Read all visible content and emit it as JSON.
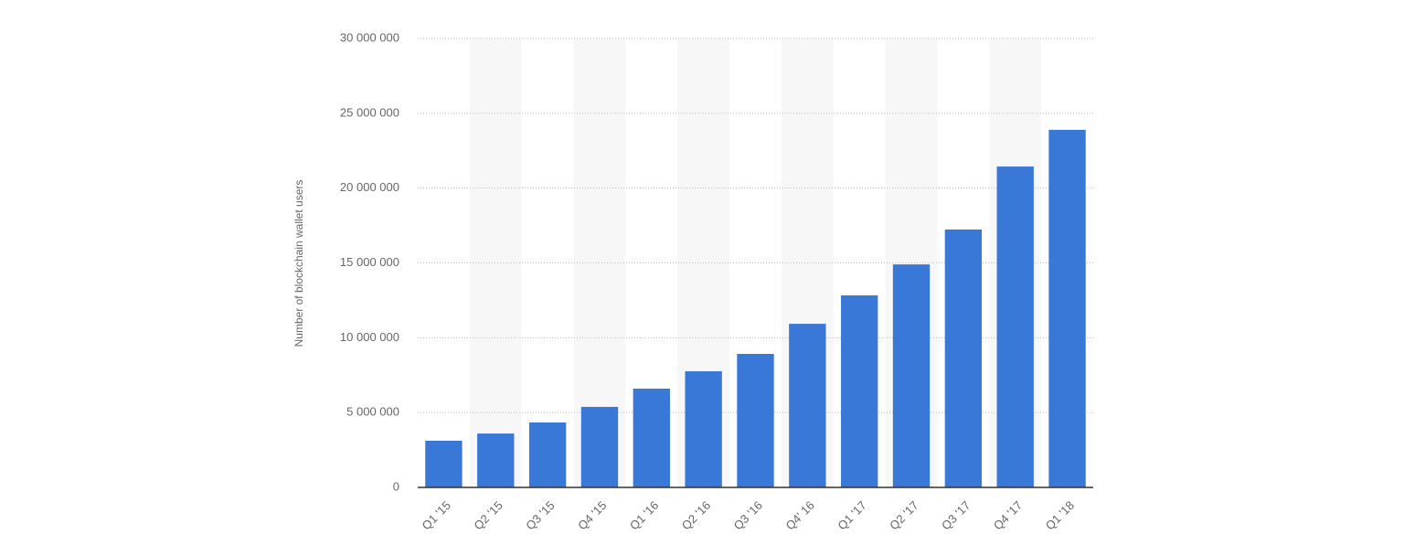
{
  "chart_data": {
    "type": "bar",
    "y_label": "Number of blockchain wallet users",
    "categories": [
      "Q1 '15",
      "Q2 '15",
      "Q3 '15",
      "Q4 '15",
      "Q1 '16",
      "Q2 '16",
      "Q3 '16",
      "Q4' 16",
      "Q1 '17",
      "Q2 '17",
      "Q3 '17",
      "Q4 '17",
      "Q1 '18"
    ],
    "values": [
      3120000,
      3600000,
      4340000,
      5380000,
      6600000,
      7760000,
      8920000,
      10930000,
      12830000,
      14900000,
      17230000,
      21440000,
      23890000
    ],
    "color": "#3a78d8",
    "ylim": [
      0,
      30000000
    ],
    "yticks": [
      0,
      {
        "value": 5000000,
        "label": "5 000 000"
      },
      {
        "value": 10000000,
        "label": "10 000 000"
      },
      {
        "value": 15000000,
        "label": "15 000 000"
      },
      {
        "value": 20000000,
        "label": "20 000 000"
      },
      {
        "value": 25000000,
        "label": "25 000 000"
      },
      {
        "value": 30000000,
        "label": "30 000 000"
      }
    ],
    "grid": true
  }
}
